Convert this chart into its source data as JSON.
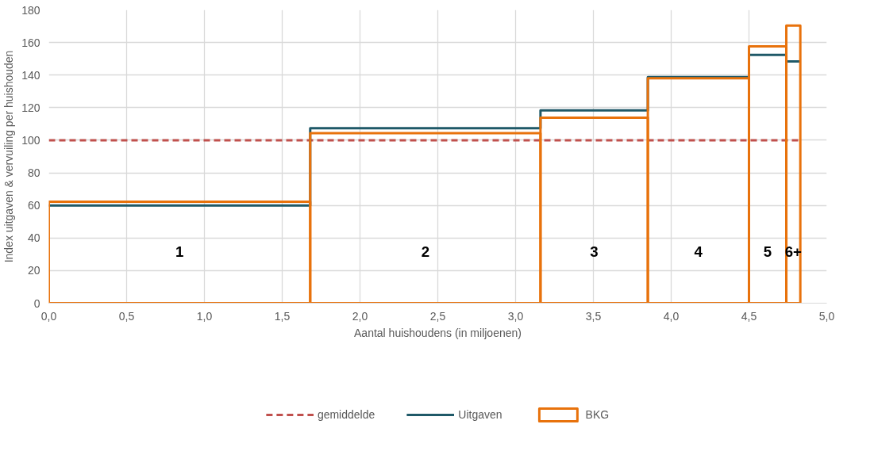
{
  "chart_data": {
    "type": "step",
    "xlabel": "Aantal huishoudens (in miljoenen)",
    "ylabel": "Index uitgaven & vervuiling per huishouden",
    "x": [
      0,
      1.68,
      3.16,
      3.85,
      4.5,
      4.74,
      4.83
    ],
    "series": [
      {
        "name": "gemiddelde",
        "color": "#c0504d",
        "line_style": "dashed",
        "x": [
          0,
          4.83
        ],
        "values": [
          100,
          100
        ]
      },
      {
        "name": "Uitgaven",
        "color": "#1f5968",
        "values": [
          60,
          107.4,
          118.3,
          138.8,
          152.4,
          148.4,
          148.4
        ]
      },
      {
        "name": "BKG",
        "type": "bar",
        "color": "#e8720c",
        "x": [
          0.84,
          2.42,
          3.505,
          4.175,
          4.62,
          4.785
        ],
        "values": [
          62.3,
          104.4,
          113.8,
          138.1,
          157.6,
          170.4
        ]
      }
    ],
    "xlim": [
      0,
      5
    ],
    "ylim": [
      0,
      180
    ],
    "xticks": [
      {
        "value": 0,
        "label": "0,0"
      },
      {
        "value": 0.5,
        "label": "0,5"
      },
      {
        "value": 1,
        "label": "1,0"
      },
      {
        "value": 1.5,
        "label": "1,5"
      },
      {
        "value": 2,
        "label": "2,0"
      },
      {
        "value": 2.5,
        "label": "2,5"
      },
      {
        "value": 3,
        "label": "3,0"
      },
      {
        "value": 3.5,
        "label": "3,5"
      },
      {
        "value": 4,
        "label": "4,0"
      },
      {
        "value": 4.5,
        "label": "4,5"
      },
      {
        "value": 5,
        "label": "5,0"
      }
    ],
    "yticks": [
      0,
      20,
      40,
      60,
      80,
      100,
      120,
      140,
      160,
      180
    ],
    "annotations": [
      "1",
      "2",
      "3",
      "4",
      "5",
      "6+"
    ],
    "grid": true,
    "legend": "bottom"
  }
}
